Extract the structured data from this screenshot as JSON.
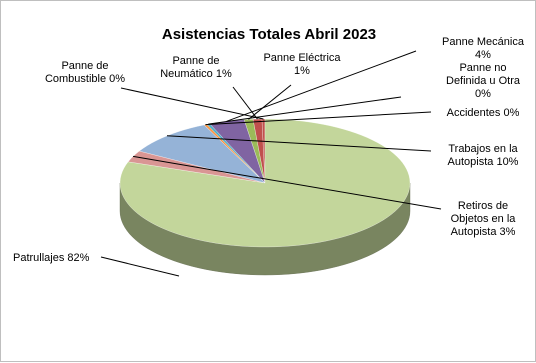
{
  "chart_data": {
    "type": "pie",
    "title": "Asistencias  Totales Abril 2023",
    "slices": [
      {
        "name": "Panne de Combustible",
        "value": 0,
        "label": [
          "Panne de",
          "Combustible 0%"
        ],
        "color": "#c0504d"
      },
      {
        "name": "Panne de Neumático",
        "value": 1,
        "label": [
          "Panne de",
          "Neumático 1%"
        ],
        "color": "#c0504d"
      },
      {
        "name": "Panne Eléctrica",
        "value": 1,
        "label": [
          "Panne Eléctrica",
          "1%"
        ],
        "color": "#9bbb59"
      },
      {
        "name": "Panne Mecánica",
        "value": 4,
        "label": [
          "Panne Mecánica",
          "4%"
        ],
        "color": "#8064a2"
      },
      {
        "name": "Panne no Definida u Otra",
        "value": 0,
        "label": [
          "Panne no",
          "Definida u Otra",
          "0%"
        ],
        "color": "#4bacc6"
      },
      {
        "name": "Accidentes",
        "value": 0,
        "label": [
          "Accidentes 0%"
        ],
        "color": "#f79646"
      },
      {
        "name": "Trabajos en la Autopista",
        "value": 10,
        "label": [
          "Trabajos en la",
          "Autopista 10%"
        ],
        "color": "#95b3d7"
      },
      {
        "name": "Retiros de Objetos en la Autopista",
        "value": 3,
        "label": [
          "Retiros de",
          "Objetos en la",
          "Autopista 3%"
        ],
        "color": "#d99694"
      },
      {
        "name": "Patrullajes",
        "value": 82,
        "label": [
          "Patrullajes 82%"
        ],
        "color": "#c3d69b"
      }
    ]
  }
}
